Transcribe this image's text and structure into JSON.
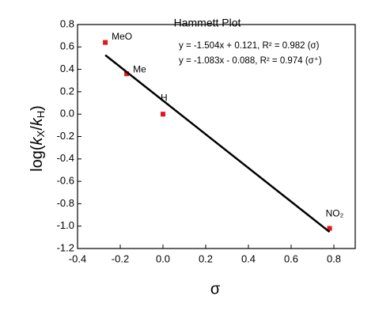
{
  "chart_data": {
    "type": "scatter",
    "title": "Hammett Plot",
    "xlabel": "σ",
    "ylabel": [
      "log(",
      "k",
      "X",
      "/",
      "k",
      "H",
      ")"
    ],
    "annotations": [
      "y = -1.504x + 0.121, R² = 0.982 (σ)",
      "y = -1.083x - 0.088, R² = 0.974 (σ⁺)"
    ],
    "xlim": [
      -0.4,
      0.9
    ],
    "ylim": [
      -1.2,
      0.8
    ],
    "xticks": [
      -0.4,
      -0.2,
      {
        "value": 0,
        "label": "0.0"
      },
      0.2,
      0.4,
      0.6,
      0.8
    ],
    "yticks": [
      0.8,
      0.6,
      0.4,
      0.2,
      {
        "value": 0,
        "label": "0.0"
      },
      -0.2,
      -0.4,
      -0.6,
      -0.8,
      {
        "value": -1,
        "label": "-1.0"
      },
      -1.2
    ],
    "series": [
      {
        "type": "scatter",
        "color": "#e8141a",
        "x": [
          -0.27,
          -0.17,
          0,
          0.78
        ],
        "values": [
          0.64,
          0.36,
          0,
          -1.02
        ],
        "point_labels": [
          "MeO",
          "Me",
          "H",
          "NO₂"
        ]
      },
      {
        "type": "line",
        "color": "#000000",
        "x": [
          -0.27,
          0.78
        ],
        "values": [
          0.527,
          -1.052
        ]
      }
    ]
  }
}
